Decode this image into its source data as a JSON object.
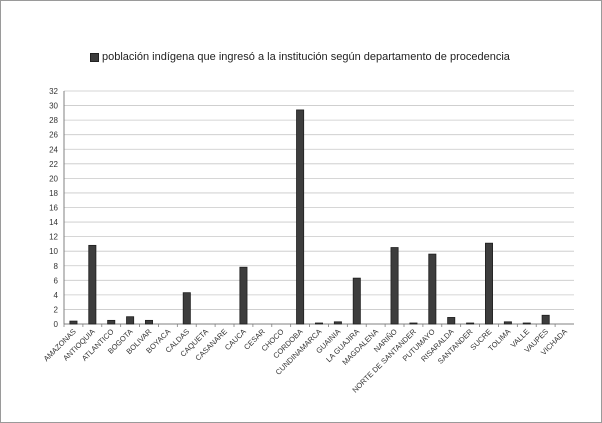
{
  "chart_data": {
    "type": "bar",
    "title": "",
    "xlabel": "",
    "ylabel": "",
    "ylim": [
      0,
      32
    ],
    "yticks": [
      0,
      2,
      4,
      6,
      8,
      10,
      12,
      14,
      16,
      18,
      20,
      22,
      24,
      26,
      28,
      30,
      32
    ],
    "grid": true,
    "legend_position": "top",
    "series": [
      {
        "name": "población indígena que ingresó a la institución  según departamento de procedencia",
        "color": "#3d3d3d",
        "values": [
          0.4,
          10.8,
          0.5,
          1.0,
          0.5,
          0,
          4.3,
          0,
          0,
          7.8,
          0,
          0,
          29.4,
          0.1,
          0.3,
          6.3,
          0,
          10.5,
          0.1,
          9.6,
          0.9,
          0.1,
          11.1,
          0.3,
          0.1,
          1.2,
          0
        ]
      }
    ],
    "categories": [
      "AMAZONAS",
      "ANTIOQUIA",
      "ATLANTICO",
      "BOGOTA",
      "BOLIVAR",
      "BOYACA",
      "CALDAS",
      "CAQUETA",
      "CASANARE",
      "CAUCA",
      "CESAR",
      "CHOCO",
      "CORDOBA",
      "CUNDINAMARCA",
      "GUAINIA",
      "LA GUAJIRA",
      "MAGDALENA",
      "NARIÑO",
      "NORTE DE SANTANDER",
      "PUTUMAYO",
      "RISARALDA",
      "SANTANDER",
      "SUCRE",
      "TOLIMA",
      "VALLE",
      "VAUPES",
      "VICHADA"
    ]
  }
}
